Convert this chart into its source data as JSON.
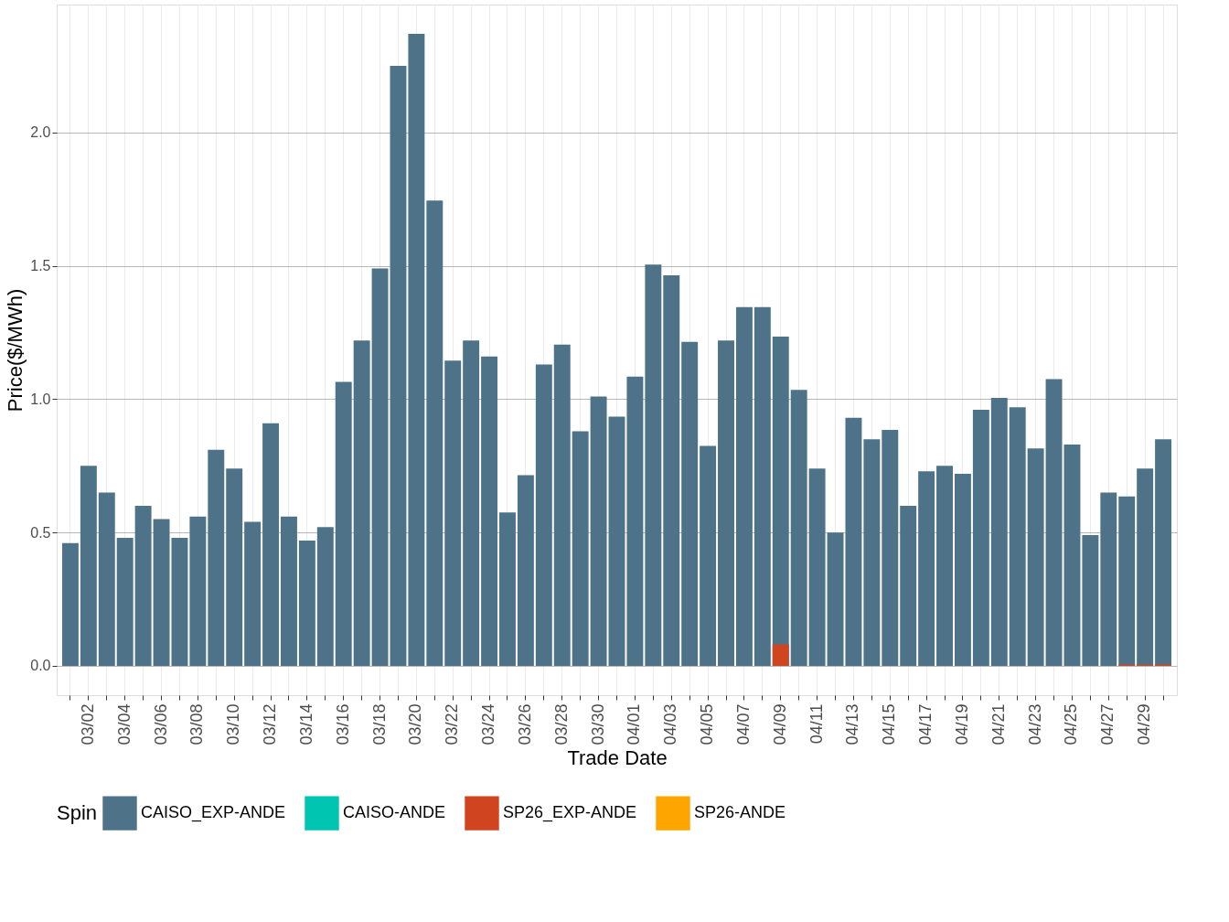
{
  "chart_data": {
    "type": "bar",
    "xlabel": "Trade Date",
    "ylabel": "Price($/MWh)",
    "legend_title": "Spin",
    "categories": [
      null,
      "03/02",
      null,
      "03/04",
      null,
      "03/06",
      null,
      "03/08",
      null,
      "03/10",
      null,
      "03/12",
      null,
      "03/14",
      null,
      "03/16",
      null,
      "03/18",
      null,
      "03/20",
      null,
      "03/22",
      null,
      "03/24",
      null,
      "03/26",
      null,
      "03/28",
      null,
      "03/30",
      null,
      "04/01",
      null,
      "04/03",
      null,
      "04/05",
      null,
      "04/07",
      null,
      "04/09",
      null,
      "04/11",
      null,
      "04/13",
      null,
      "04/15",
      null,
      "04/17",
      null,
      "04/19",
      null,
      "04/21",
      null,
      "04/23",
      null,
      "04/25",
      null,
      "04/27",
      null,
      "04/29",
      null
    ],
    "series": [
      {
        "name": "CAISO_EXP-ANDE",
        "color": "#4e7389",
        "values": [
          0.46,
          0.75,
          0.65,
          0.48,
          0.6,
          0.55,
          0.48,
          0.56,
          0.81,
          0.74,
          0.54,
          0.91,
          0.56,
          0.47,
          0.52,
          1.065,
          1.22,
          1.49,
          2.25,
          2.37,
          1.745,
          1.145,
          1.22,
          1.16,
          0.575,
          0.715,
          1.13,
          1.205,
          0.88,
          1.01,
          0.935,
          1.085,
          1.505,
          1.465,
          1.215,
          0.825,
          1.22,
          1.345,
          1.345,
          1.235,
          1.035,
          0.74,
          0.5,
          0.93,
          0.85,
          0.885,
          0.6,
          0.73,
          0.75,
          0.72,
          0.96,
          1.005,
          0.97,
          0.815,
          1.075,
          0.83,
          0.49,
          0.65,
          0.635,
          0.74,
          0.85
        ]
      },
      {
        "name": "CAISO-ANDE",
        "color": "#00c5b0",
        "values": [
          null,
          null,
          null,
          null,
          null,
          null,
          null,
          null,
          null,
          null,
          null,
          null,
          null,
          null,
          null,
          null,
          null,
          null,
          null,
          null,
          null,
          null,
          null,
          null,
          null,
          null,
          null,
          null,
          null,
          null,
          null,
          null,
          null,
          null,
          null,
          null,
          null,
          null,
          null,
          null,
          null,
          null,
          null,
          null,
          null,
          null,
          null,
          null,
          null,
          null,
          null,
          null,
          null,
          null,
          null,
          null,
          null,
          null,
          null,
          null,
          null
        ]
      },
      {
        "name": "SP26_EXP-ANDE",
        "color": "#d04520",
        "values": [
          null,
          null,
          null,
          null,
          null,
          null,
          null,
          null,
          null,
          null,
          null,
          null,
          null,
          null,
          null,
          null,
          null,
          null,
          null,
          null,
          null,
          null,
          null,
          null,
          null,
          null,
          null,
          null,
          null,
          null,
          null,
          null,
          null,
          null,
          null,
          null,
          null,
          null,
          null,
          0.08,
          null,
          null,
          null,
          null,
          null,
          null,
          null,
          null,
          null,
          null,
          null,
          null,
          null,
          null,
          null,
          null,
          null,
          null,
          0.005,
          0.005,
          0.005
        ]
      },
      {
        "name": "SP26-ANDE",
        "color": "#ffa500",
        "values": [
          null,
          null,
          null,
          null,
          null,
          null,
          null,
          null,
          null,
          null,
          null,
          null,
          null,
          null,
          null,
          null,
          null,
          null,
          null,
          null,
          null,
          null,
          null,
          null,
          null,
          null,
          null,
          null,
          null,
          null,
          null,
          null,
          null,
          null,
          null,
          null,
          null,
          null,
          null,
          null,
          null,
          null,
          null,
          null,
          null,
          null,
          null,
          null,
          null,
          null,
          null,
          null,
          null,
          null,
          null,
          null,
          null,
          null,
          null,
          null,
          null
        ]
      }
    ],
    "ylim": [
      -0.11,
      2.48
    ],
    "yticks": [
      {
        "value": 0,
        "label": "0.0"
      },
      {
        "value": 0.5,
        "label": "0.5"
      },
      {
        "value": 1,
        "label": "1.0"
      },
      {
        "value": 1.5,
        "label": "1.5"
      },
      {
        "value": 2,
        "label": "2.0"
      }
    ],
    "grid": true,
    "legend": "bottom"
  }
}
